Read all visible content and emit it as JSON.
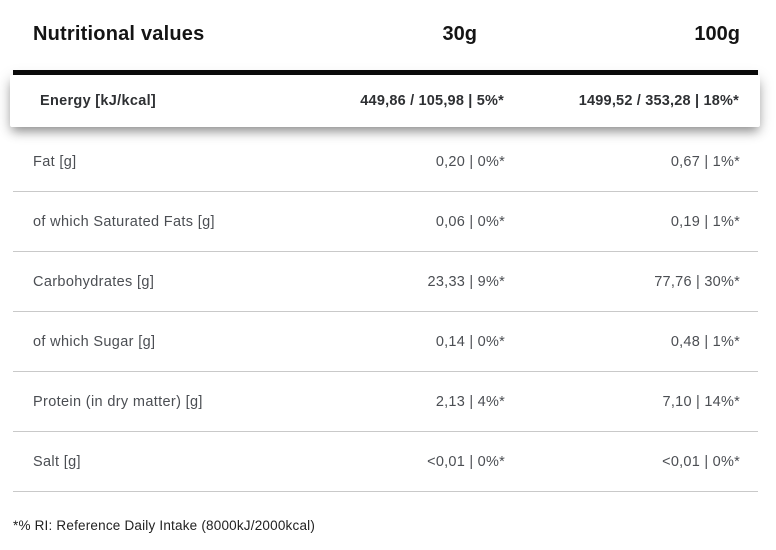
{
  "table": {
    "header": {
      "label": "Nutritional values",
      "col_30g": "30g",
      "col_100g": "100g"
    },
    "energy_row": {
      "label": "Energy [kJ/kcal]",
      "val_30g": "449,86 / 105,98 | 5%*",
      "val_100g": "1499,52 / 353,28 | 18%*"
    },
    "rows": [
      {
        "label": "Fat [g]",
        "val_30g": "0,20 | 0%*",
        "val_100g": "0,67 | 1%*"
      },
      {
        "label": "of which Saturated Fats [g]",
        "val_30g": "0,06 | 0%*",
        "val_100g": "0,19 | 1%*"
      },
      {
        "label": "Carbohydrates [g]",
        "val_30g": "23,33 | 9%*",
        "val_100g": "77,76 | 30%*"
      },
      {
        "label": "of which Sugar [g]",
        "val_30g": "0,14 | 0%*",
        "val_100g": "0,48 | 1%*"
      },
      {
        "label": "Protein (in dry matter) [g]",
        "val_30g": "2,13 | 4%*",
        "val_100g": "7,10 | 14%*"
      },
      {
        "label": "Salt [g]",
        "val_30g": "<0,01 | 0%*",
        "val_100g": "<0,01 | 0%*"
      }
    ],
    "footnote": "*% RI: Reference Daily Intake (8000kJ/2000kcal)"
  },
  "colors": {
    "heavy_rule": "#0c0c0c",
    "divider": "#c9c9c9",
    "header_text": "#141414",
    "energy_text": "#2e3033",
    "row_text": "#4b4e53",
    "background": "#ffffff"
  }
}
